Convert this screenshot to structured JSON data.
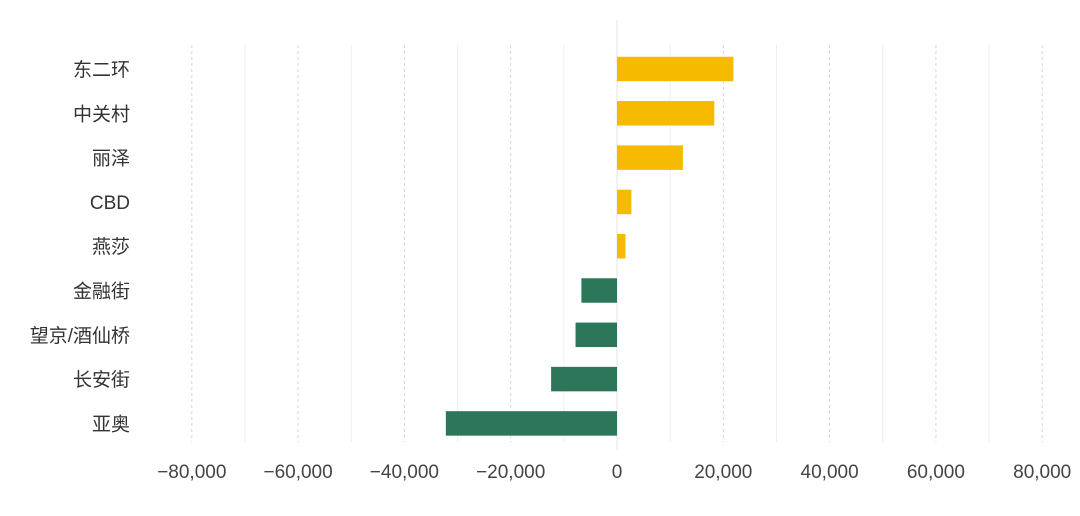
{
  "chart_data": {
    "type": "bar",
    "orientation": "horizontal",
    "categories": [
      "东二环",
      "中关村",
      "丽泽",
      "CBD",
      "燕莎",
      "金融街",
      "望京/酒仙桥",
      "长安街",
      "亚奥"
    ],
    "values": [
      21900,
      18300,
      12400,
      2700,
      1600,
      -6700,
      -7800,
      -12400,
      -32200
    ],
    "xlim": [
      -80000,
      80000
    ],
    "xticks": [
      -80000,
      -60000,
      -40000,
      -20000,
      0,
      20000,
      40000,
      60000,
      80000
    ],
    "xtick_labels": [
      "−80,000",
      "−60,000",
      "−40,000",
      "−20,000",
      "0",
      "20,000",
      "40,000",
      "60,000",
      "80,000"
    ],
    "grid": true,
    "colors": {
      "positive": "#F6BB00",
      "negative": "#2C7759"
    },
    "title": "",
    "xlabel": "",
    "ylabel": ""
  }
}
